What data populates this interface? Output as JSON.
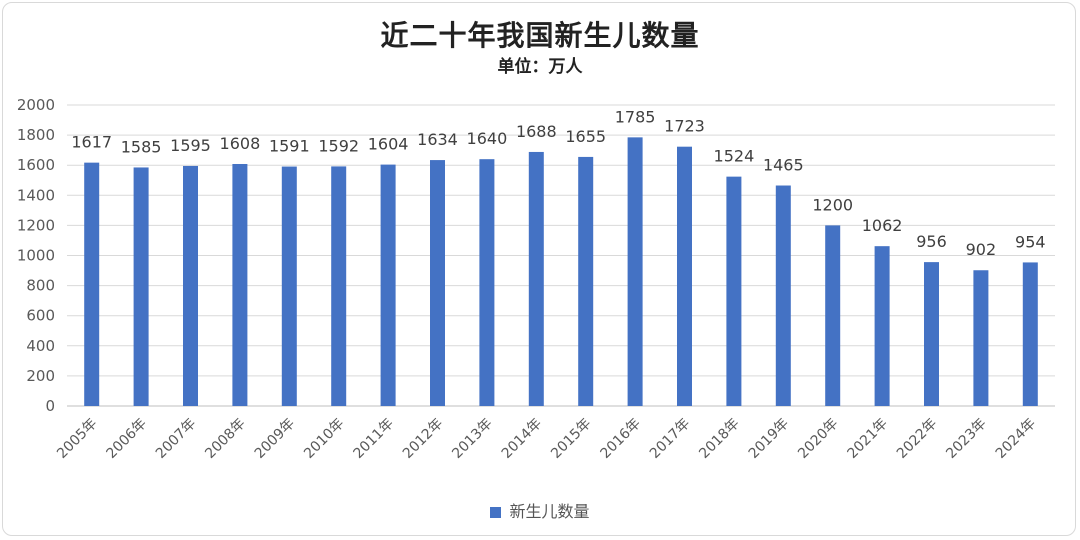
{
  "colors": {
    "bar": "#4472C4",
    "grid": "#d9d9d9",
    "axis": "#bfbfbf",
    "text": "#595959",
    "label": "#404040"
  },
  "chart_data": {
    "type": "bar",
    "title": "近二十年我国新生儿数量",
    "subtitle": "单位：万人",
    "categories": [
      "2005年",
      "2006年",
      "2007年",
      "2008年",
      "2009年",
      "2010年",
      "2011年",
      "2012年",
      "2013年",
      "2014年",
      "2015年",
      "2016年",
      "2017年",
      "2018年",
      "2019年",
      "2020年",
      "2021年",
      "2022年",
      "2023年",
      "2024年"
    ],
    "series": [
      {
        "name": "新生儿数量",
        "values": [
          1617,
          1585,
          1595,
          1608,
          1591,
          1592,
          1604,
          1634,
          1640,
          1688,
          1655,
          1785,
          1723,
          1524,
          1465,
          1200,
          1062,
          956,
          902,
          954
        ]
      }
    ],
    "ylim": [
      0,
      2000
    ],
    "yticks": [
      "0",
      "200",
      "400",
      "600",
      "800",
      "1000",
      "1200",
      "1400",
      "1600",
      "1800",
      "2000"
    ],
    "grid": true,
    "legend_position": "bottom"
  }
}
